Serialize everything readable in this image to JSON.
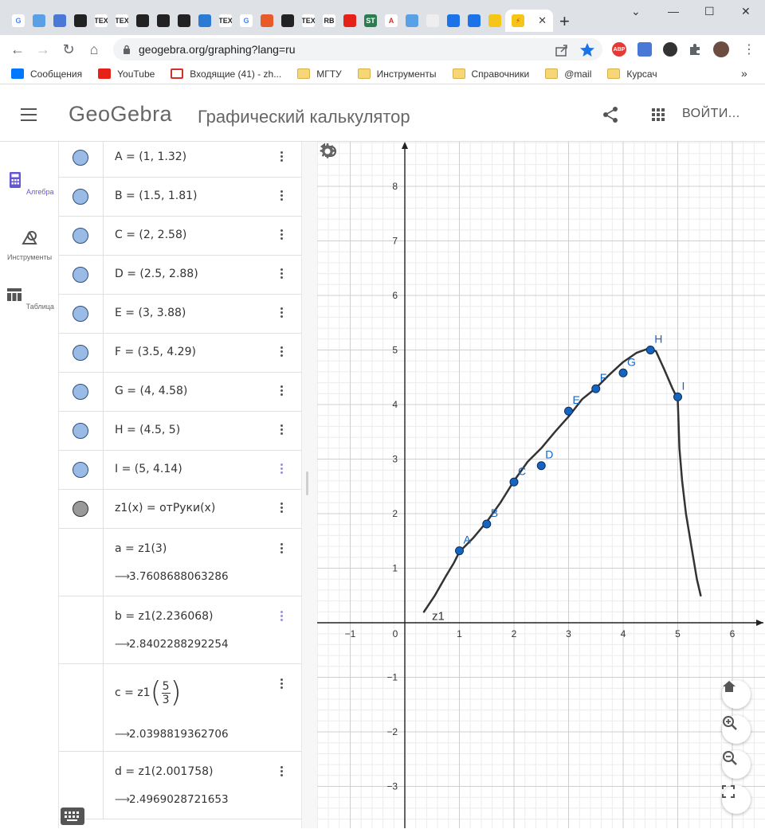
{
  "browser": {
    "tabs": [
      {
        "icon": "google-icon",
        "glyph": "G",
        "color": "#ffffff",
        "fg": "#4285f4"
      },
      {
        "icon": "app-icon",
        "glyph": "",
        "color": "#5aa0e6",
        "fg": "#fff"
      },
      {
        "icon": "translate-icon",
        "glyph": "",
        "color": "#4a78d6",
        "fg": "#fff"
      },
      {
        "icon": "github-icon",
        "glyph": "",
        "color": "#222222",
        "fg": "#fff"
      },
      {
        "icon": "tex-icon",
        "glyph": "TEX",
        "color": "#ffffff",
        "fg": "#222"
      },
      {
        "icon": "tex-icon",
        "glyph": "TEX",
        "color": "#ffffff",
        "fg": "#222"
      },
      {
        "icon": "github-icon",
        "glyph": "",
        "color": "#222222",
        "fg": "#fff"
      },
      {
        "icon": "github-icon",
        "glyph": "",
        "color": "#222222",
        "fg": "#fff"
      },
      {
        "icon": "github-icon",
        "glyph": "",
        "color": "#222222",
        "fg": "#fff"
      },
      {
        "icon": "vscode-icon",
        "glyph": "",
        "color": "#2a7bd4",
        "fg": "#fff"
      },
      {
        "icon": "tex-icon",
        "glyph": "TEX",
        "color": "#ffffff",
        "fg": "#222"
      },
      {
        "icon": "google-icon",
        "glyph": "G",
        "color": "#ffffff",
        "fg": "#4285f4"
      },
      {
        "icon": "microsoft-icon",
        "glyph": "",
        "color": "#e85a2a",
        "fg": "#fff"
      },
      {
        "icon": "github-icon",
        "glyph": "",
        "color": "#222222",
        "fg": "#fff"
      },
      {
        "icon": "tex-icon",
        "glyph": "TEX",
        "color": "#ffffff",
        "fg": "#222"
      },
      {
        "icon": "rb-icon",
        "glyph": "RB",
        "color": "#ffffff",
        "fg": "#222"
      },
      {
        "icon": "youtube-icon",
        "glyph": "",
        "color": "#e62117",
        "fg": "#fff"
      },
      {
        "icon": "st-icon",
        "glyph": "ST",
        "color": "#2a7d4f",
        "fg": "#fff"
      },
      {
        "icon": "font-icon",
        "glyph": "A",
        "color": "#ffffff",
        "fg": "#c0392b"
      },
      {
        "icon": "app-icon",
        "glyph": "",
        "color": "#5aa0e6",
        "fg": "#fff"
      },
      {
        "icon": "doc-icon",
        "glyph": "",
        "color": "#eeeeee",
        "fg": "#555"
      },
      {
        "icon": "chat-icon",
        "glyph": "",
        "color": "#1a73e8",
        "fg": "#fff"
      },
      {
        "icon": "history-icon",
        "glyph": "",
        "color": "#1a73e8",
        "fg": "#fff"
      },
      {
        "icon": "lightning-icon",
        "glyph": "",
        "color": "#f5c518",
        "fg": "#d32f2f"
      }
    ],
    "active_tab_icon": "lightning-icon",
    "url": "geogebra.org/graphing?lang=ru",
    "bookmarks": [
      {
        "label": "Сообщения",
        "icon": "vk-icon"
      },
      {
        "label": "YouTube",
        "icon": "youtube-icon"
      },
      {
        "label": "Входящие (41) - zh...",
        "icon": "gmail-icon"
      },
      {
        "label": "МГТУ",
        "icon": "folder-icon"
      },
      {
        "label": "Инструменты",
        "icon": "folder-icon"
      },
      {
        "label": "Справочники",
        "icon": "folder-icon"
      },
      {
        "label": "@mail",
        "icon": "folder-icon"
      },
      {
        "label": "Курсач",
        "icon": "folder-icon"
      }
    ],
    "bookmarks_overflow": "»",
    "extensions": [
      "ABP"
    ]
  },
  "header": {
    "logo": "GeoGebra",
    "title": "Графический калькулятор",
    "login": "ВОЙТИ..."
  },
  "rail": [
    {
      "label": "Алгебра",
      "active": true
    },
    {
      "label": "Инструменты",
      "active": false
    },
    {
      "label": "Таблица",
      "active": false
    }
  ],
  "algebra": {
    "points": [
      {
        "text": "A = (1, 1.32)"
      },
      {
        "text": "B = (1.5, 1.81)"
      },
      {
        "text": "C = (2, 2.58)"
      },
      {
        "text": "D = (2.5, 2.88)"
      },
      {
        "text": "E = (3, 3.88)"
      },
      {
        "text": "F = (3.5, 4.29)"
      },
      {
        "text": "G = (4, 4.58)"
      },
      {
        "text": "H = (4.5, 5)"
      },
      {
        "text": "I = (5, 4.14)"
      }
    ],
    "function_def": "z1(x)  =  отРуки(x)",
    "evaluations": [
      {
        "expr": "a  =  z1(3)",
        "result": "3.7608688063286"
      },
      {
        "expr": "b  =  z1(2.236068)",
        "result": "2.8402288292254"
      },
      {
        "expr_prefix": "c  =  z1",
        "frac_num": "5",
        "frac_den": "3",
        "result": "2.0398819362706"
      },
      {
        "expr": "d  =  z1(2.001758)",
        "result": "2.4969028721653"
      }
    ]
  },
  "chart_data": {
    "type": "scatter",
    "xlim": [
      -1.6,
      6.6
    ],
    "ylim": [
      -3.6,
      8.6
    ],
    "x_ticks": [
      -1,
      0,
      1,
      2,
      3,
      4,
      5,
      6
    ],
    "y_ticks": [
      -3,
      -2,
      -1,
      1,
      2,
      3,
      4,
      5,
      6,
      7,
      8
    ],
    "grid": true,
    "points": [
      {
        "label": "A",
        "x": 1,
        "y": 1.32
      },
      {
        "label": "B",
        "x": 1.5,
        "y": 1.81
      },
      {
        "label": "C",
        "x": 2,
        "y": 2.58
      },
      {
        "label": "D",
        "x": 2.5,
        "y": 2.88
      },
      {
        "label": "E",
        "x": 3,
        "y": 3.88
      },
      {
        "label": "F",
        "x": 3.5,
        "y": 4.29
      },
      {
        "label": "G",
        "x": 4,
        "y": 4.58
      },
      {
        "label": "H",
        "x": 4.5,
        "y": 5
      },
      {
        "label": "I",
        "x": 5,
        "y": 4.14
      }
    ],
    "curve": {
      "label": "z1",
      "x": [
        0.35,
        0.55,
        0.75,
        0.9,
        1.0,
        1.25,
        1.5,
        1.75,
        2.0,
        2.25,
        2.5,
        2.75,
        3.0,
        3.25,
        3.5,
        3.75,
        4.0,
        4.25,
        4.45,
        4.6,
        4.75,
        4.9,
        5.0,
        5.03,
        5.08,
        5.15,
        5.25,
        5.35,
        5.42
      ],
      "y": [
        0.2,
        0.5,
        0.85,
        1.1,
        1.3,
        1.55,
        1.85,
        2.2,
        2.6,
        2.95,
        3.2,
        3.5,
        3.78,
        4.1,
        4.3,
        4.55,
        4.78,
        4.95,
        5.02,
        4.98,
        4.65,
        4.3,
        4.1,
        3.2,
        2.6,
        2.0,
        1.4,
        0.8,
        0.5
      ]
    },
    "point_color": "#1565c0",
    "curve_color": "#333333"
  }
}
